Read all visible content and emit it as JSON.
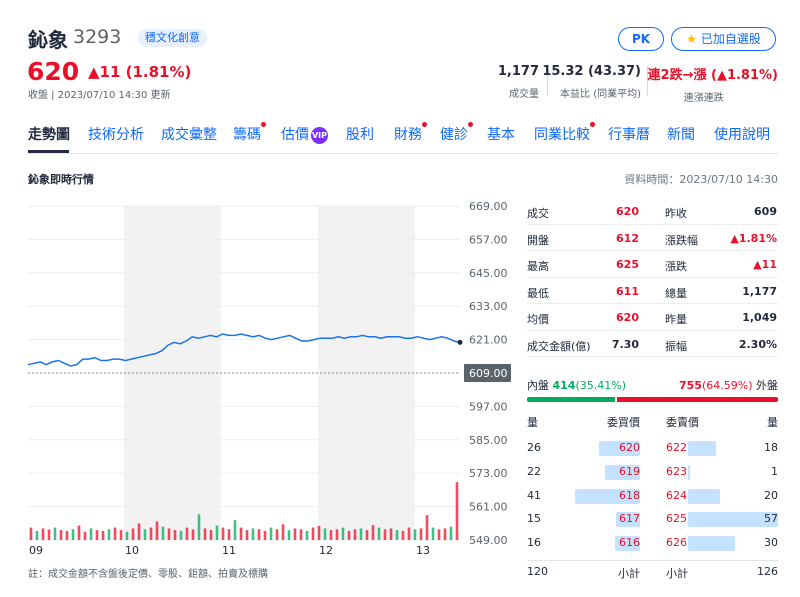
{
  "header": {
    "name": "鈊象",
    "code": "3293",
    "tag": "穩文化創意",
    "price": "620",
    "change": "▲11 (1.81%)",
    "time": "收盤 | 2023/07/10 14:30 更新",
    "pk": "PK",
    "watch": "已加自選股",
    "stats": [
      {
        "value": "1,177",
        "label": "成交量"
      },
      {
        "value": "15.32 (43.37)",
        "label": "本益比 (同業平均)"
      },
      {
        "value": "連2跌→漲 (▲1.81%)",
        "label": "連漲連跌"
      }
    ]
  },
  "tabs": [
    {
      "label": "走勢圖",
      "dot": false
    },
    {
      "label": "技術分析",
      "dot": false
    },
    {
      "label": "成交彙整",
      "dot": false
    },
    {
      "label": "籌碼",
      "dot": true
    },
    {
      "label": "估價",
      "dot": false,
      "vip": "VIP"
    },
    {
      "label": "股利",
      "dot": false
    },
    {
      "label": "財務",
      "dot": true
    },
    {
      "label": "健診",
      "dot": true
    },
    {
      "label": "基本",
      "dot": false
    },
    {
      "label": "同業比較",
      "dot": true
    },
    {
      "label": "行事曆",
      "dot": false
    },
    {
      "label": "新聞",
      "dot": false
    },
    {
      "label": "使用說明",
      "dot": false
    }
  ],
  "section": {
    "title": "鈊象即時行情",
    "data_time": "資料時間：2023/07/10 14:30"
  },
  "quote_rows": [
    {
      "l1": "成交",
      "v1": "620",
      "c1": "red",
      "l2": "昨收",
      "v2": "609",
      "c2": ""
    },
    {
      "l1": "開盤",
      "v1": "612",
      "c1": "red",
      "l2": "漲跌幅",
      "v2": "▲1.81%",
      "c2": "red"
    },
    {
      "l1": "最高",
      "v1": "625",
      "c1": "red",
      "l2": "漲跌",
      "v2": "▲11",
      "c2": "red"
    },
    {
      "l1": "最低",
      "v1": "611",
      "c1": "red",
      "l2": "總量",
      "v2": "1,177",
      "c2": ""
    },
    {
      "l1": "均價",
      "v1": "620",
      "c1": "red",
      "l2": "昨量",
      "v2": "1,049",
      "c2": ""
    },
    {
      "l1": "成交金額(億)",
      "v1": "7.30",
      "c1": "",
      "l2": "振幅",
      "v2": "2.30%",
      "c2": ""
    }
  ],
  "inout": {
    "in_label": "內盤",
    "in_value": "414",
    "in_pct": "(35.41%)",
    "out_value": "755",
    "out_pct": "(64.59%)",
    "out_label": "外盤",
    "in_ratio": 0.3541
  },
  "orderbook": {
    "head": {
      "bid_qty": "量",
      "bid_price": "委買價",
      "ask_price": "委賣價",
      "ask_qty": "量"
    },
    "rows": [
      {
        "bid_qty": "26",
        "bid_price": "620",
        "ask_price": "622",
        "ask_qty": "18"
      },
      {
        "bid_qty": "22",
        "bid_price": "619",
        "ask_price": "623",
        "ask_qty": "1"
      },
      {
        "bid_qty": "41",
        "bid_price": "618",
        "ask_price": "624",
        "ask_qty": "20"
      },
      {
        "bid_qty": "15",
        "bid_price": "617",
        "ask_price": "625",
        "ask_qty": "57"
      },
      {
        "bid_qty": "16",
        "bid_price": "616",
        "ask_price": "626",
        "ask_qty": "30"
      }
    ],
    "foot": {
      "bid_total": "120",
      "bid_label": "小計",
      "ask_label": "小計",
      "ask_total": "126"
    }
  },
  "footnote": "註：成交金額不含盤後定價、零股、鉅額、拍賣及標購",
  "colors": {
    "up": "#eb0f29",
    "down": "#00ab5e",
    "accent": "#0f69ff",
    "line": "#1a73e8"
  },
  "chart_data": {
    "type": "line",
    "title": "",
    "ylim": [
      549,
      669
    ],
    "yticks": [
      "669.00",
      "657.00",
      "645.00",
      "633.00",
      "621.00",
      "609.00",
      "597.00",
      "585.00",
      "573.00",
      "561.00",
      "549.00"
    ],
    "xticks": [
      "09",
      "10",
      "11",
      "12",
      "13"
    ],
    "reference": {
      "value": 609,
      "label": "609.00"
    },
    "series": [
      {
        "values": [
          612,
          612.5,
          613,
          612,
          613,
          613.5,
          612.5,
          611.5,
          612,
          614,
          614,
          614.5,
          613.5,
          613.5,
          614,
          614,
          613.5,
          614,
          614.5,
          615,
          615.5,
          616,
          617,
          619,
          620,
          619.5,
          620.5,
          622,
          621.5,
          622,
          622.5,
          622,
          623,
          622.5,
          622.5,
          623,
          622.5,
          622,
          622.5,
          621.5,
          621,
          621.5,
          622,
          622.5,
          621.5,
          620.5,
          620.5,
          621,
          621.5,
          621.5,
          621.5,
          622,
          621.5,
          622,
          622,
          622.5,
          622,
          622,
          621.5,
          622,
          622,
          622,
          621.5,
          621.5,
          622,
          621.5,
          621,
          621.5,
          622,
          621.5,
          620.5,
          620
        ]
      }
    ],
    "volume": [
      30,
      22,
      28,
      25,
      30,
      24,
      22,
      26,
      35,
      20,
      28,
      24,
      22,
      26,
      30,
      24,
      20,
      28,
      40,
      26,
      30,
      45,
      32,
      28,
      24,
      22,
      30,
      26,
      62,
      28,
      24,
      35,
      30,
      26,
      48,
      30,
      24,
      28,
      26,
      22,
      30,
      26,
      38,
      24,
      28,
      26,
      22,
      30,
      34,
      28,
      24,
      26,
      30,
      22,
      26,
      28,
      24,
      36,
      30,
      26,
      28,
      24,
      22,
      30,
      26,
      28,
      60,
      30,
      26,
      28,
      32,
      140
    ]
  }
}
